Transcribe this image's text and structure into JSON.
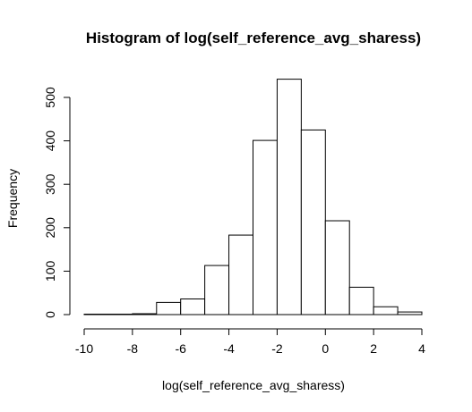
{
  "chart_data": {
    "type": "bar",
    "title": "Histogram of log(self_reference_avg_sharess)",
    "xlabel": "log(self_reference_avg_sharess)",
    "ylabel": "Frequency",
    "xlim": [
      -10,
      4
    ],
    "ylim": [
      0,
      545
    ],
    "bin_width": 1,
    "bins": [
      {
        "start": -10,
        "end": -9,
        "value": 1
      },
      {
        "start": -9,
        "end": -8,
        "value": 1
      },
      {
        "start": -8,
        "end": -7,
        "value": 2
      },
      {
        "start": -7,
        "end": -6,
        "value": 28
      },
      {
        "start": -6,
        "end": -5,
        "value": 36
      },
      {
        "start": -5,
        "end": -4,
        "value": 113
      },
      {
        "start": -4,
        "end": -3,
        "value": 183
      },
      {
        "start": -3,
        "end": -2,
        "value": 401
      },
      {
        "start": -2,
        "end": -1,
        "value": 542
      },
      {
        "start": -1,
        "end": 0,
        "value": 425
      },
      {
        "start": 0,
        "end": 1,
        "value": 216
      },
      {
        "start": 1,
        "end": 2,
        "value": 63
      },
      {
        "start": 2,
        "end": 3,
        "value": 18
      },
      {
        "start": 3,
        "end": 4,
        "value": 6
      }
    ],
    "x_ticks": [
      -10,
      -8,
      -6,
      -4,
      -2,
      0,
      2,
      4
    ],
    "x_tick_labels": [
      "-10",
      "-8",
      "-6",
      "-4",
      "-2",
      "0",
      "2",
      "4"
    ],
    "y_ticks": [
      0,
      100,
      200,
      300,
      400,
      500
    ],
    "y_tick_labels": [
      "0",
      "100",
      "200",
      "300",
      "400",
      "500"
    ],
    "grid": false,
    "legend": "none",
    "colors": {
      "bar_fill": "#ffffff",
      "bar_stroke": "#000000",
      "text": "#000000"
    }
  }
}
